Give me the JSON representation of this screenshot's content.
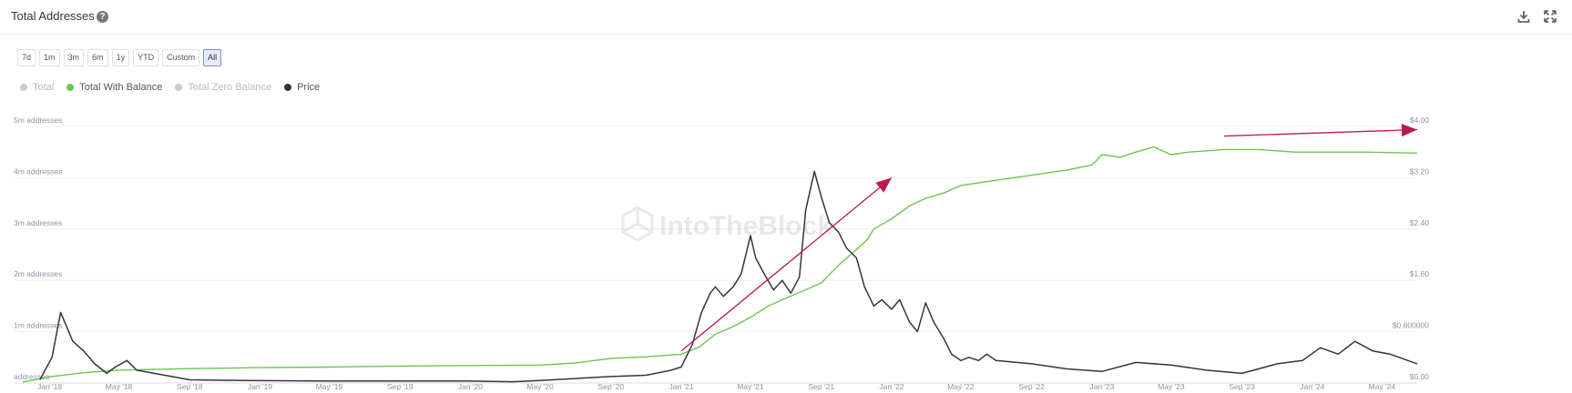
{
  "header": {
    "title": "Total Addresses",
    "help_icon": "?",
    "download_icon": "download-icon",
    "fullscreen_icon": "expand-icon"
  },
  "range_buttons": [
    "7d",
    "1m",
    "3m",
    "6m",
    "1y",
    "YTD",
    "Custom",
    "All"
  ],
  "active_range": "All",
  "legend": [
    {
      "label": "Total",
      "color": "#cccccc",
      "active": false
    },
    {
      "label": "Total With Balance",
      "color": "#6cc551",
      "active": true
    },
    {
      "label": "Total Zero Balance",
      "color": "#cccccc",
      "active": false
    },
    {
      "label": "Price",
      "color": "#34343c",
      "active": true
    }
  ],
  "watermark": "IntoTheBlock",
  "chart_data": {
    "type": "line",
    "x_ticks": [
      "Jan '18",
      "May '18",
      "Sep '18",
      "Jan '19",
      "May '19",
      "Sep '19",
      "Jan '20",
      "May '20",
      "Sep '20",
      "Jan '21",
      "May '21",
      "Sep '21",
      "Jan '22",
      "May '22",
      "Sep '22",
      "Jan '23",
      "May '23",
      "Sep '23",
      "Jan '24",
      "May '24"
    ],
    "y_left_ticks": [
      "addresses",
      "1m addresses",
      "2m addresses",
      "3m addresses",
      "4m addresses",
      "5m addresses"
    ],
    "y_right_ticks": [
      "$0.00",
      "$0.800000",
      "$1.60",
      "$2.40",
      "$3.20",
      "$4.00"
    ],
    "ylim_left": [
      0,
      5000000
    ],
    "ylim_right": [
      0,
      4.0
    ],
    "series": [
      {
        "name": "Total With Balance",
        "axis": "left",
        "color": "#6cc551",
        "x": [
          "2017-11-15",
          "2018-01-01",
          "2018-03-01",
          "2018-05-01",
          "2018-09-01",
          "2019-01-01",
          "2019-05-01",
          "2019-09-01",
          "2020-01-01",
          "2020-05-01",
          "2020-07-01",
          "2020-09-01",
          "2020-11-01",
          "2021-01-01",
          "2021-02-01",
          "2021-03-01",
          "2021-04-01",
          "2021-05-01",
          "2021-06-01",
          "2021-07-01",
          "2021-08-01",
          "2021-09-01",
          "2021-10-01",
          "2021-11-01",
          "2021-11-20",
          "2021-12-01",
          "2022-01-01",
          "2022-02-01",
          "2022-03-01",
          "2022-04-01",
          "2022-05-01",
          "2022-06-01",
          "2022-07-01",
          "2022-09-01",
          "2022-11-01",
          "2022-12-15",
          "2023-01-01",
          "2023-02-01",
          "2023-03-01",
          "2023-04-01",
          "2023-05-01",
          "2023-06-01",
          "2023-08-01",
          "2023-10-01",
          "2023-12-01",
          "2024-02-01",
          "2024-04-01",
          "2024-07-01"
        ],
        "values": [
          20000,
          120000,
          200000,
          250000,
          280000,
          300000,
          310000,
          330000,
          340000,
          350000,
          390000,
          480000,
          510000,
          560000,
          700000,
          950000,
          1100000,
          1280000,
          1500000,
          1650000,
          1800000,
          1950000,
          2300000,
          2600000,
          2800000,
          3000000,
          3200000,
          3450000,
          3600000,
          3700000,
          3850000,
          3900000,
          3950000,
          4050000,
          4150000,
          4250000,
          4450000,
          4400000,
          4500000,
          4600000,
          4450000,
          4500000,
          4550000,
          4550000,
          4500000,
          4500000,
          4500000,
          4480000
        ]
      },
      {
        "name": "Price",
        "axis": "right",
        "color": "#34343c",
        "x": [
          "2017-12-15",
          "2018-01-05",
          "2018-01-20",
          "2018-02-10",
          "2018-03-01",
          "2018-03-20",
          "2018-04-10",
          "2018-04-25",
          "2018-05-15",
          "2018-06-01",
          "2018-07-01",
          "2018-08-01",
          "2018-09-01",
          "2018-12-01",
          "2019-05-01",
          "2019-09-01",
          "2020-01-01",
          "2020-03-15",
          "2020-05-01",
          "2020-09-01",
          "2020-11-01",
          "2020-12-15",
          "2021-01-01",
          "2021-01-20",
          "2021-02-05",
          "2021-02-20",
          "2021-03-01",
          "2021-03-15",
          "2021-04-01",
          "2021-04-15",
          "2021-05-01",
          "2021-05-10",
          "2021-05-25",
          "2021-06-10",
          "2021-06-25",
          "2021-07-10",
          "2021-07-25",
          "2021-08-05",
          "2021-08-20",
          "2021-09-01",
          "2021-09-15",
          "2021-10-01",
          "2021-10-15",
          "2021-11-01",
          "2021-11-15",
          "2021-12-01",
          "2021-12-15",
          "2022-01-01",
          "2022-01-15",
          "2022-02-01",
          "2022-02-15",
          "2022-03-01",
          "2022-03-15",
          "2022-04-01",
          "2022-04-15",
          "2022-05-01",
          "2022-05-15",
          "2022-06-01",
          "2022-06-15",
          "2022-07-01",
          "2022-09-01",
          "2022-11-01",
          "2023-01-01",
          "2023-03-01",
          "2023-05-01",
          "2023-07-01",
          "2023-09-01",
          "2023-11-01",
          "2023-12-15",
          "2024-01-15",
          "2024-02-15",
          "2024-03-15",
          "2024-04-15",
          "2024-05-15",
          "2024-07-01"
        ],
        "values": [
          0.05,
          0.4,
          1.1,
          0.65,
          0.5,
          0.3,
          0.15,
          0.25,
          0.35,
          0.2,
          0.15,
          0.1,
          0.05,
          0.04,
          0.03,
          0.03,
          0.03,
          0.02,
          0.04,
          0.1,
          0.12,
          0.2,
          0.25,
          0.6,
          1.1,
          1.4,
          1.5,
          1.35,
          1.5,
          1.7,
          2.3,
          1.95,
          1.7,
          1.45,
          1.6,
          1.4,
          1.65,
          2.7,
          3.3,
          2.9,
          2.5,
          2.35,
          2.1,
          1.95,
          1.5,
          1.2,
          1.3,
          1.15,
          1.3,
          0.95,
          0.8,
          1.25,
          0.95,
          0.7,
          0.45,
          0.35,
          0.4,
          0.35,
          0.45,
          0.35,
          0.3,
          0.22,
          0.18,
          0.32,
          0.28,
          0.2,
          0.15,
          0.3,
          0.35,
          0.55,
          0.45,
          0.65,
          0.5,
          0.45,
          0.3
        ]
      }
    ],
    "annotations": [
      {
        "type": "arrow",
        "color": "#c0184a",
        "from": [
          "2021-01-01",
          0.5
        ],
        "to": [
          "2022-01-01",
          3.2
        ]
      },
      {
        "type": "arrow",
        "color": "#c0184a",
        "from": [
          "2023-08-01",
          3.85
        ],
        "to": [
          "2024-07-01",
          3.95
        ]
      }
    ],
    "grid": true
  }
}
